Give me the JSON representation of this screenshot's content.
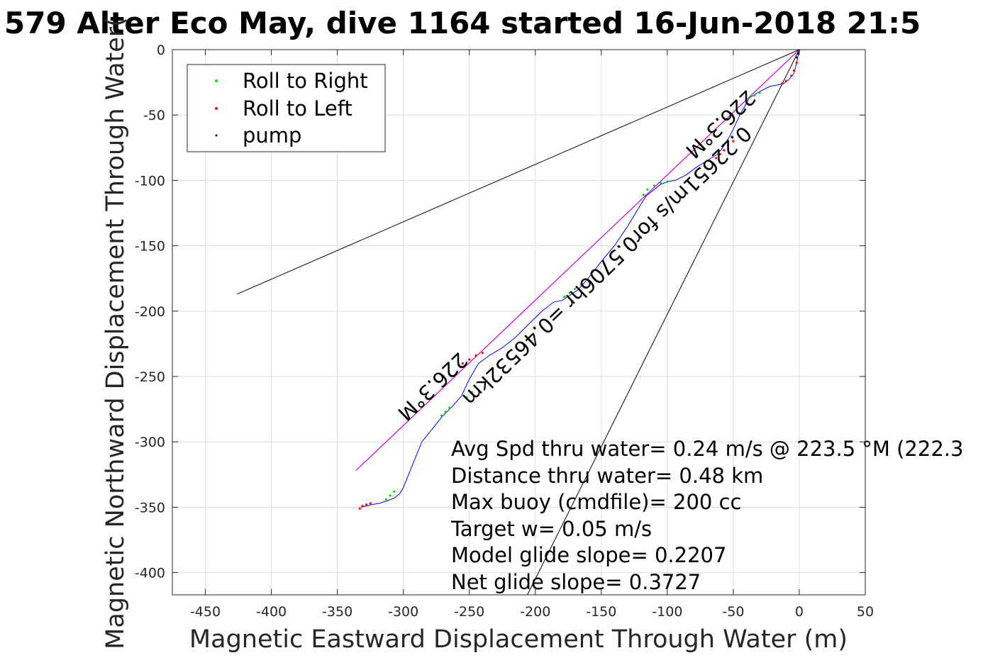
{
  "chart_data": {
    "type": "scatter",
    "title": "579 Alter Eco May, dive 1164 started 16-Jun-2018 21:5",
    "xlabel": "Magnetic Eastward Displacement Through Water (m)",
    "ylabel": "Magnetic Northward Displacement Through Water(",
    "xlim": [
      -475,
      50
    ],
    "ylim": [
      -417,
      0
    ],
    "xticks": [
      "-450",
      "-400",
      "-350",
      "-300",
      "-250",
      "-200",
      "-150",
      "-100",
      "-50",
      "0",
      "50"
    ],
    "xtick_values": [
      -450,
      -400,
      -350,
      -300,
      -250,
      -200,
      -150,
      -100,
      -50,
      0,
      50
    ],
    "yticks": [
      "0",
      "-50",
      "-100",
      "-150",
      "-200",
      "-250",
      "-300",
      "-350",
      "-400"
    ],
    "ytick_values": [
      0,
      -50,
      -100,
      -150,
      -200,
      -250,
      -300,
      -350,
      -400
    ],
    "grid": true,
    "legend": {
      "position": "top-left",
      "entries": [
        {
          "label": "Roll to Right",
          "color": "#00dd00"
        },
        {
          "label": "Roll to Left",
          "color": "#ff0000"
        },
        {
          "label": "pump",
          "color": "#000000"
        }
      ]
    },
    "colors": {
      "track": "#0000ff",
      "heading_line": "#cc00cc",
      "cone_lines": "#000000",
      "roll_right": "#00dd00",
      "roll_left": "#ff0000",
      "pump": "#000000"
    },
    "series": [
      {
        "name": "track",
        "x": [
          0,
          -2,
          -4,
          -8,
          -12,
          -16,
          -22,
          -30,
          -38,
          -45,
          -52,
          -58,
          -62,
          -70,
          -78,
          -86,
          -94,
          -100,
          -105,
          -110,
          -116,
          -121,
          -130,
          -140,
          -150,
          -160,
          -168,
          -174,
          -180,
          -186,
          -195,
          -205,
          -215,
          -225,
          -235,
          -243,
          -250,
          -256,
          -263,
          -270,
          -278,
          -286,
          -290,
          -296,
          -300,
          -303,
          -307,
          -312,
          -318,
          -324,
          -328,
          -332
        ],
        "y": [
          0,
          -10,
          -18,
          -23,
          -26,
          -27,
          -28,
          -32,
          -37,
          -50,
          -65,
          -75,
          -80,
          -85,
          -90,
          -96,
          -100,
          -101,
          -103,
          -107,
          -112,
          -120,
          -135,
          -150,
          -162,
          -175,
          -184,
          -188,
          -192,
          -193,
          -200,
          -210,
          -220,
          -228,
          -234,
          -240,
          -252,
          -265,
          -273,
          -280,
          -290,
          -300,
          -310,
          -325,
          -335,
          -340,
          -343,
          -345,
          -347,
          -348,
          -349,
          -350
        ]
      },
      {
        "name": "Roll to Right",
        "x": [
          -30,
          -34,
          -38,
          -100,
          -105,
          -110,
          -115,
          -118,
          -165,
          -170,
          -174,
          -178,
          -248,
          -252,
          -265,
          -268,
          -271,
          -307,
          -310,
          -313
        ],
        "y": [
          -33,
          -35,
          -37,
          -101,
          -102,
          -104,
          -107,
          -111,
          -180,
          -183,
          -186,
          -189,
          -262,
          -266,
          -274,
          -277,
          -280,
          -338,
          -341,
          -344
        ]
      },
      {
        "name": "Roll to Left",
        "x": [
          -2,
          -4,
          -6,
          -10,
          -13,
          -50,
          -54,
          -57,
          -60,
          -63,
          -240,
          -245,
          -250,
          -255,
          -325,
          -328,
          -331,
          -333
        ],
        "y": [
          -10,
          -16,
          -20,
          -24,
          -26,
          -70,
          -73,
          -77,
          -80,
          -83,
          -232,
          -234,
          -237,
          -240,
          -347,
          -348,
          -349,
          -351
        ]
      },
      {
        "name": "pump",
        "x": [
          0,
          -1,
          -2
        ],
        "y": [
          0,
          -3,
          -6
        ]
      },
      {
        "name": "heading",
        "x": [
          0,
          -336
        ],
        "y": [
          0,
          -322
        ]
      },
      {
        "name": "cone_upper",
        "x": [
          0,
          -426
        ],
        "y": [
          0,
          -187
        ]
      },
      {
        "name": "cone_lower",
        "x": [
          0,
          -206
        ],
        "y": [
          0,
          -417
        ]
      }
    ],
    "annotations": {
      "near_label": "226.3°M",
      "mid_label": "0.22651m/s for0.5706hr =0.46532km",
      "far_label": "226.3°M"
    },
    "stats": [
      "Avg Spd thru water=  0.24 m/s @ 223.5 °M (222.3",
      "Distance thru water=  0.48 km",
      "Max buoy (cmdfile)= 200 cc",
      "Target w= 0.05 m/s",
      "Model glide slope= 0.2207",
      "Net glide slope= 0.3727"
    ]
  }
}
